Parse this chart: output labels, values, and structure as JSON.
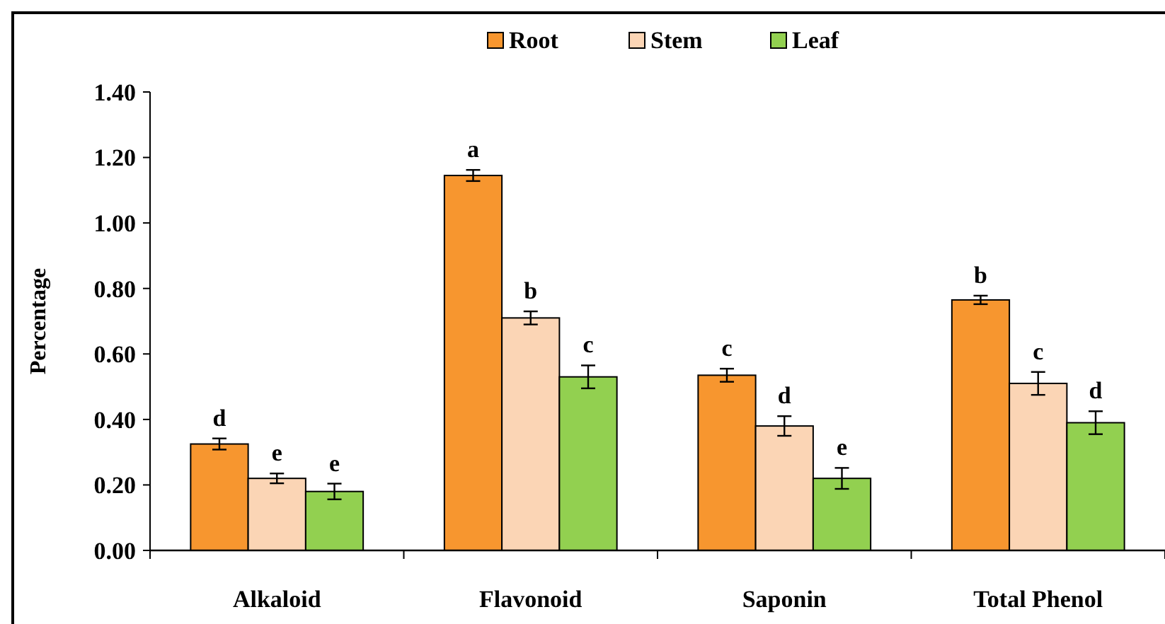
{
  "chart_data": {
    "type": "bar",
    "ylabel": "Percentage",
    "categories": [
      "Alkaloid",
      "Flavonoid",
      "Saponin",
      "Total Phenol"
    ],
    "series": [
      {
        "name": "Root",
        "color": "#f7962f",
        "values": [
          0.325,
          1.145,
          0.535,
          0.765
        ],
        "errors": [
          0.017,
          0.017,
          0.02,
          0.013
        ],
        "value_labels": [
          "d",
          "a",
          "c",
          "b"
        ]
      },
      {
        "name": "Stem",
        "color": "#fbd5b5",
        "values": [
          0.22,
          0.71,
          0.38,
          0.51
        ],
        "errors": [
          0.015,
          0.02,
          0.03,
          0.035
        ],
        "value_labels": [
          "e",
          "b",
          "d",
          "c"
        ]
      },
      {
        "name": "Leaf",
        "color": "#92d050",
        "values": [
          0.18,
          0.53,
          0.22,
          0.39
        ],
        "errors": [
          0.024,
          0.035,
          0.032,
          0.035
        ],
        "value_labels": [
          "e",
          "c",
          "e",
          "d"
        ]
      }
    ],
    "ylim": [
      0,
      1.4
    ],
    "yticks": [
      {
        "value": 0,
        "label": "0.00"
      },
      {
        "value": 0.2,
        "label": "0.20"
      },
      {
        "value": 0.4,
        "label": "0.40"
      },
      {
        "value": 0.6,
        "label": "0.60"
      },
      {
        "value": 0.8,
        "label": "0.80"
      },
      {
        "value": 1,
        "label": "1.00"
      },
      {
        "value": 1.2,
        "label": "1.20"
      },
      {
        "value": 1.4,
        "label": "1.40"
      }
    ],
    "grid": false,
    "legend": "top"
  }
}
